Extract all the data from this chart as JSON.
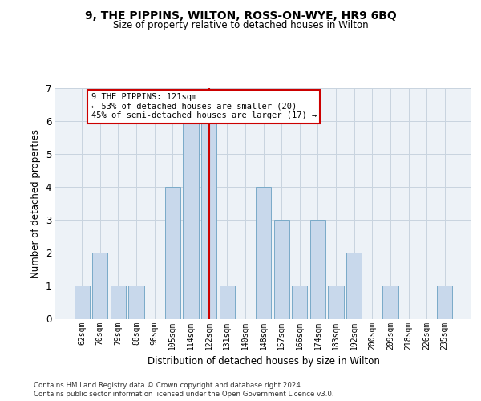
{
  "title1": "9, THE PIPPINS, WILTON, ROSS-ON-WYE, HR9 6BQ",
  "title2": "Size of property relative to detached houses in Wilton",
  "xlabel": "Distribution of detached houses by size in Wilton",
  "ylabel": "Number of detached properties",
  "categories": [
    "62sqm",
    "70sqm",
    "79sqm",
    "88sqm",
    "96sqm",
    "105sqm",
    "114sqm",
    "122sqm",
    "131sqm",
    "140sqm",
    "148sqm",
    "157sqm",
    "166sqm",
    "174sqm",
    "183sqm",
    "192sqm",
    "200sqm",
    "209sqm",
    "218sqm",
    "226sqm",
    "235sqm"
  ],
  "values": [
    1,
    2,
    1,
    1,
    0,
    4,
    6,
    6,
    1,
    0,
    4,
    3,
    1,
    3,
    1,
    2,
    0,
    1,
    0,
    0,
    1
  ],
  "bar_color": "#c8d8eb",
  "bar_edgecolor": "#7aaac8",
  "vline_x_index": 7,
  "vline_color": "#cc0000",
  "annotation_lines": [
    "9 THE PIPPINS: 121sqm",
    "← 53% of detached houses are smaller (20)",
    "45% of semi-detached houses are larger (17) →"
  ],
  "annotation_box_edgecolor": "#cc0000",
  "annotation_box_facecolor": "#ffffff",
  "grid_color": "#c8d4df",
  "bg_color": "#edf2f7",
  "footer1": "Contains HM Land Registry data © Crown copyright and database right 2024.",
  "footer2": "Contains public sector information licensed under the Open Government Licence v3.0.",
  "ylim": [
    0,
    7
  ],
  "yticks": [
    0,
    1,
    2,
    3,
    4,
    5,
    6,
    7
  ]
}
